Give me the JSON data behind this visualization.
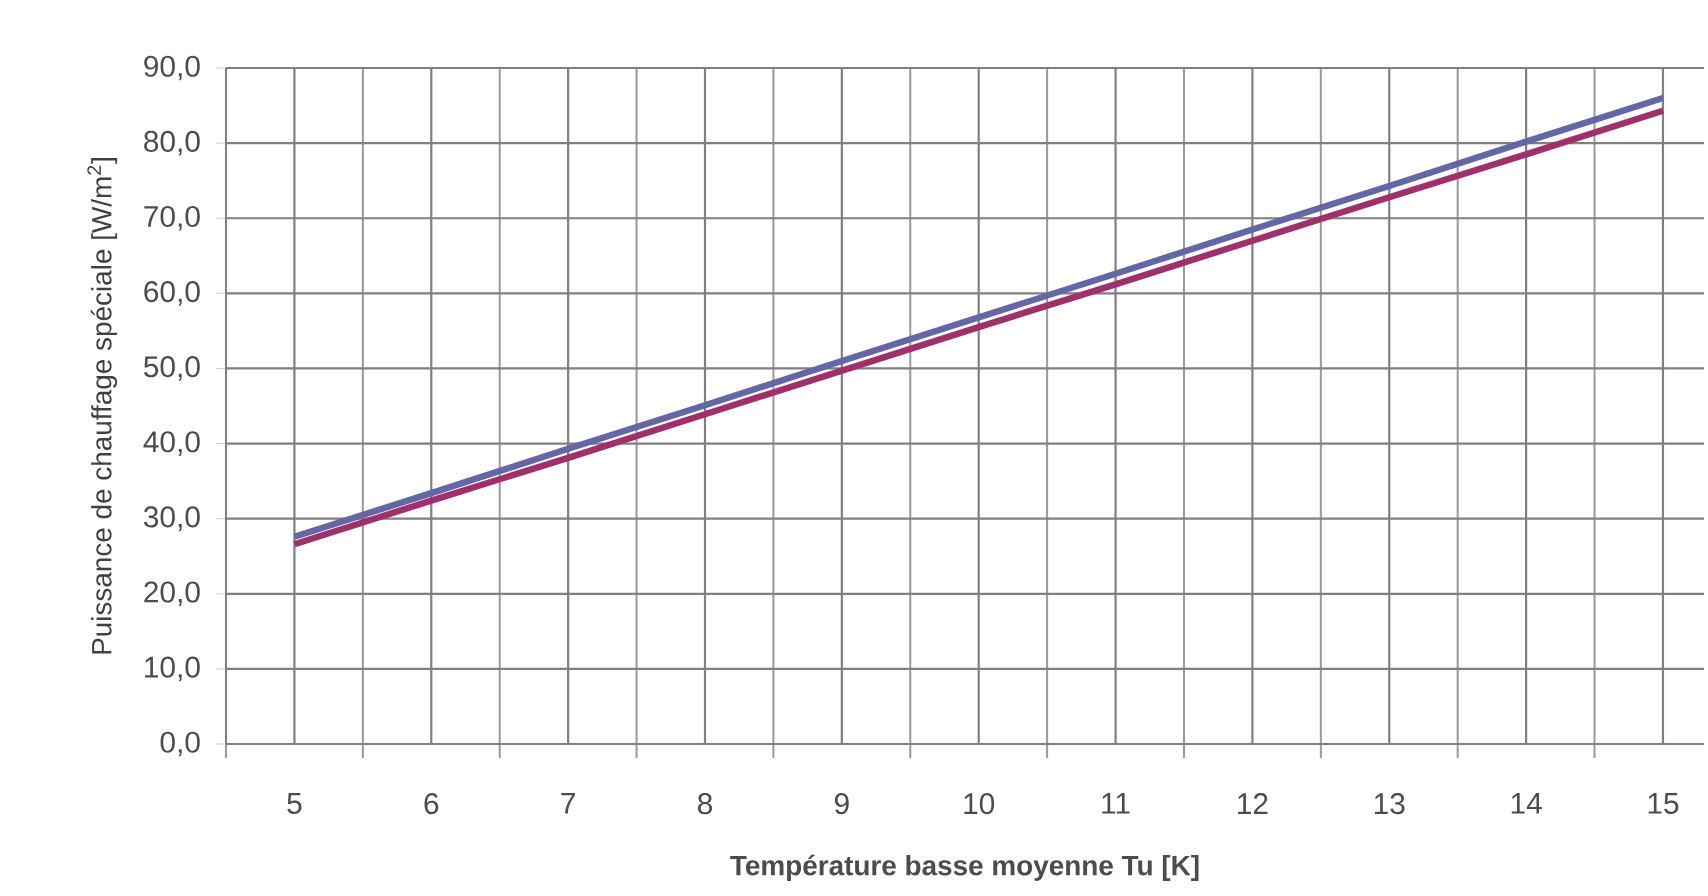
{
  "chart_data": {
    "type": "line",
    "xlabel": "Température basse moyenne Tu [K]",
    "ylabel": "Puissance de chauffage spéciale [W/m$^{2}$]",
    "categories": [
      "5",
      "6",
      "7",
      "8",
      "9",
      "10",
      "11",
      "12",
      "13",
      "14",
      "15"
    ],
    "series": [
      {
        "color": "#6466a6",
        "values": [
          27.6,
          33.4,
          39.3,
          45.1,
          51.0,
          56.8,
          62.6,
          68.5,
          74.3,
          80.2,
          86.0
        ]
      },
      {
        "color": "#a0306c",
        "values": [
          26.6,
          32.4,
          38.1,
          43.9,
          49.7,
          55.5,
          61.2,
          67.0,
          72.8,
          78.5,
          84.3
        ]
      }
    ],
    "ylim": [
      0,
      90
    ],
    "yticks": [
      {
        "value": 0,
        "label": "0,0"
      },
      {
        "value": 10,
        "label": "10,0"
      },
      {
        "value": 20,
        "label": "20,0"
      },
      {
        "value": 30,
        "label": "30,0"
      },
      {
        "value": 40,
        "label": "40,0"
      },
      {
        "value": 50,
        "label": "50,0"
      },
      {
        "value": 60,
        "label": "60,0"
      },
      {
        "value": 70,
        "label": "70,0"
      },
      {
        "value": 80,
        "label": "80,0"
      },
      {
        "value": 90,
        "label": "90,0"
      }
    ],
    "grid": true,
    "marker": "none",
    "line_style": "solid"
  }
}
